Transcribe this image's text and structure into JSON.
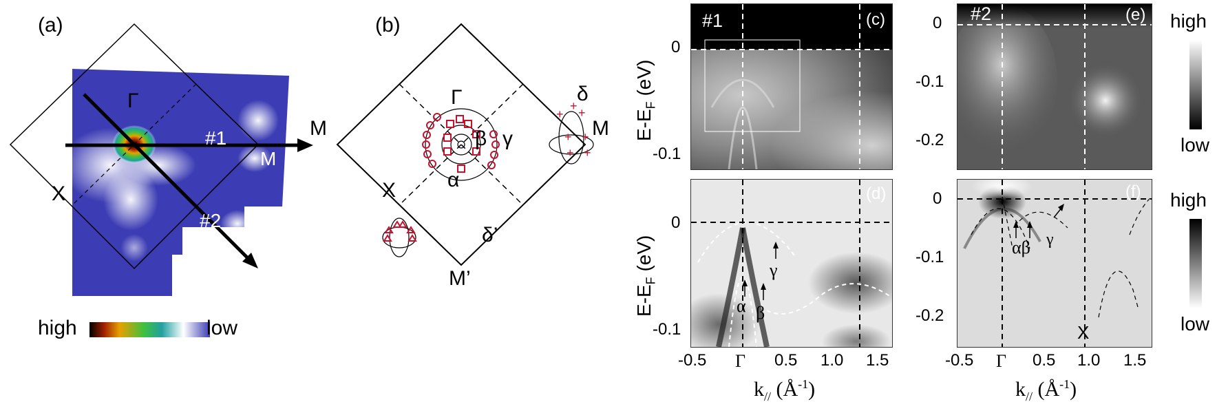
{
  "panels": {
    "a": {
      "label": "(a)",
      "gamma": "Γ",
      "cut1": "#1",
      "cut2": "#2",
      "m": "M",
      "x": "X",
      "colorbar_high": "high",
      "colorbar_low": "low"
    },
    "b": {
      "label": "(b)",
      "gamma": "Γ",
      "m_left": "M",
      "m_right": "M",
      "m_prime": "M’",
      "x": "X",
      "alpha": "α",
      "beta": "β",
      "gamma_band": "γ",
      "delta": "δ",
      "delta_prime": "δ’"
    },
    "c": {
      "label": "(c)",
      "cut": "#1",
      "ylabel": "E-E",
      "ylabel_sub": "F",
      "ylabel_unit": " (eV)",
      "yticks": [
        "0",
        "-0.1"
      ]
    },
    "d": {
      "label": "(d)",
      "ylabel": "E-E",
      "ylabel_sub": "F",
      "ylabel_unit": " (eV)",
      "yticks": [
        "0",
        "-0.1"
      ],
      "xticks": [
        "-0.5",
        "Γ",
        "0.5",
        "1.0",
        "1.5"
      ],
      "band_alpha": "α",
      "band_beta": "β",
      "band_gamma": "γ"
    },
    "e": {
      "label": "(e)",
      "cut": "#2",
      "yticks": [
        "0",
        "-0.1",
        "-0.2"
      ],
      "colorbar_high": "high",
      "colorbar_low": "low"
    },
    "f": {
      "label": "(f)",
      "yticks": [
        "0",
        "-0.1",
        "-0.2"
      ],
      "xticks": [
        "-0.5",
        "Γ",
        "0.5",
        "1.0",
        "1.5"
      ],
      "band_alphabeta": "αβ",
      "band_gamma": "γ",
      "x": "X",
      "colorbar_high": "high",
      "colorbar_low": "low"
    },
    "xlabel": {
      "k": "k",
      "sub": "//",
      "unit": "(Å",
      "exp": "-1",
      "close": ")"
    }
  },
  "colors": {
    "fermi_map_bg": "#3c3cb4",
    "marker_red": "#c8102e"
  }
}
